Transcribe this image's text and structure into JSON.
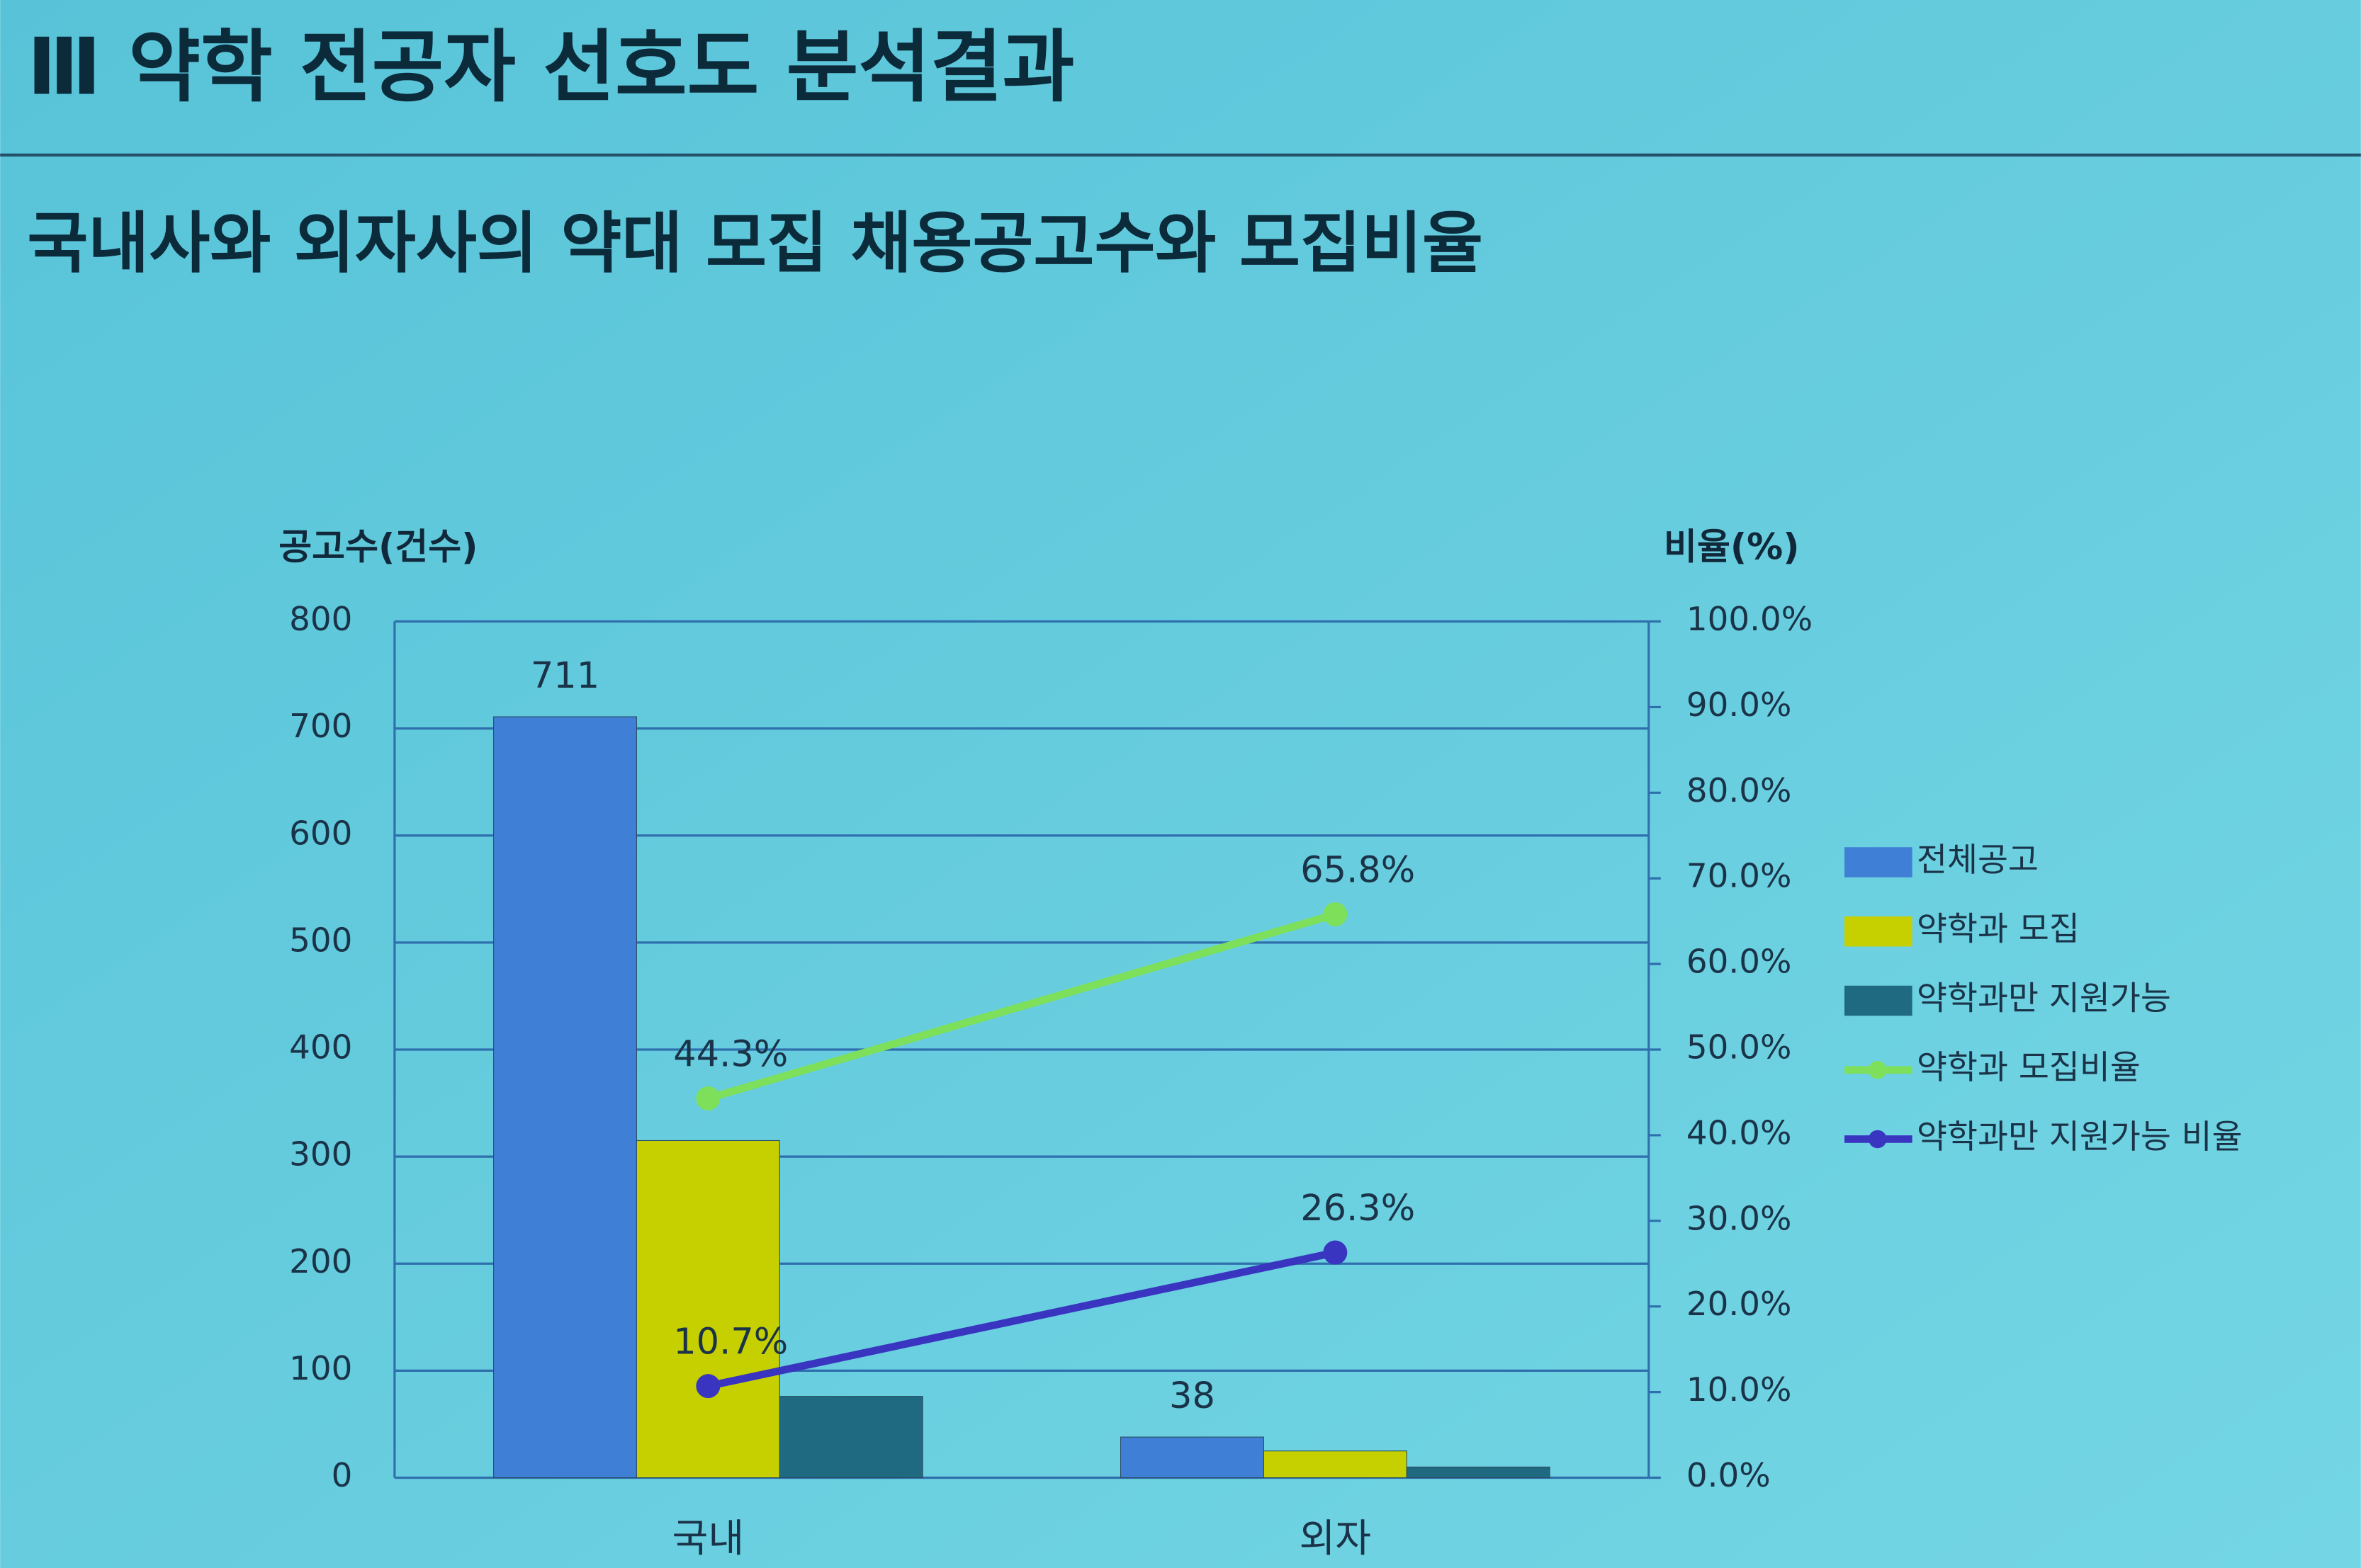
{
  "header": {
    "title": "Ⅲ 약학 전공자 선호도 분석결과",
    "subtitle": "국내사와 외자사의 약대 모집 채용공고수와 모집비율"
  },
  "chart_data": {
    "type": "bar",
    "y_label": "공고수(건수)",
    "y2_label": "비율(%)",
    "categories": [
      "국내",
      "외자"
    ],
    "series": [
      {
        "name": "전체공고",
        "color": "#3f7fd6",
        "values": [
          711,
          38
        ],
        "labels": true
      },
      {
        "name": "약학과 모집",
        "color": "#c6d000",
        "values": [
          315,
          25
        ]
      },
      {
        "name": "약학과만 지원가능",
        "color": "#1f6a80",
        "values": [
          76,
          10
        ]
      },
      {
        "name": "약학과 모집비율",
        "color": "#7ee05a",
        "type": "line",
        "axis": "y2",
        "values": [
          44.3,
          65.8
        ],
        "value_labels": [
          "44.3%",
          "65.8%"
        ]
      },
      {
        "name": "약학과만 지원가능 비율",
        "color": "#3a35c0",
        "type": "line",
        "axis": "y2",
        "values": [
          10.7,
          26.3
        ],
        "value_labels": [
          "10.7%",
          "26.3%"
        ]
      }
    ],
    "ylim": [
      0,
      800
    ],
    "yticks": [
      0,
      100,
      200,
      300,
      400,
      500,
      600,
      700,
      800
    ],
    "y2lim": [
      0,
      100
    ],
    "y2ticks": [
      {
        "value": 0,
        "label": "0.0%"
      },
      {
        "value": 10,
        "label": "10.0%"
      },
      {
        "value": 20,
        "label": "20.0%"
      },
      {
        "value": 30,
        "label": "30.0%"
      },
      {
        "value": 40,
        "label": "40.0%"
      },
      {
        "value": 50,
        "label": "50.0%"
      },
      {
        "value": 60,
        "label": "60.0%"
      },
      {
        "value": 70,
        "label": "70.0%"
      },
      {
        "value": 80,
        "label": "80.0%"
      },
      {
        "value": 90,
        "label": "90.0%"
      },
      {
        "value": 100,
        "label": "100.0%"
      }
    ],
    "grid": true,
    "legend": "right"
  }
}
